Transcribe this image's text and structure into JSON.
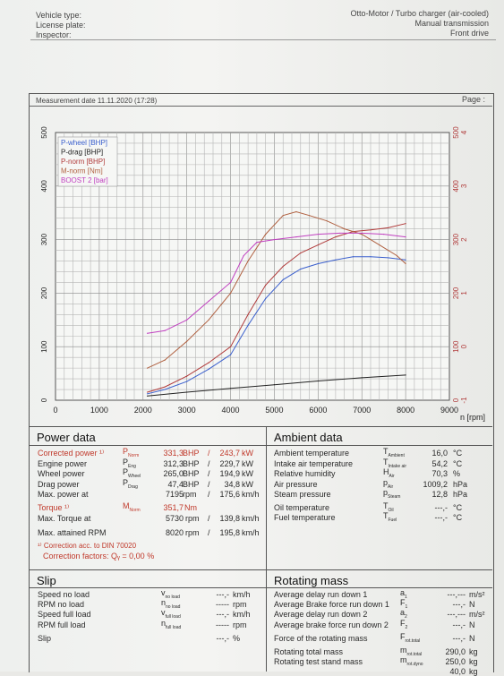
{
  "header": {
    "left": [
      "Vehicle type:",
      "License plate:",
      "Inspector:"
    ],
    "right": [
      "Otto-Motor / Turbo charger (air-cooled)",
      "Manual transmission",
      "Front drive"
    ]
  },
  "measurement_date": "Measurement date  11.11.2020 (17:28)",
  "page_label": "Page :",
  "chart_data": {
    "type": "line",
    "xlabel": "n [rpm]",
    "x_ticks": [
      "0",
      "1000",
      "2000",
      "3000",
      "4000",
      "5000",
      "6000",
      "7000",
      "8000",
      "9000"
    ],
    "y_ticks_left": [
      "0",
      "100",
      "200",
      "300",
      "400",
      "500"
    ],
    "y_ticks_right": [
      "0",
      "100",
      "200",
      "300",
      "400",
      "500"
    ],
    "y_ticks_right2": [
      "-1",
      "0",
      "1",
      "2",
      "3",
      "4"
    ],
    "xlim": [
      0,
      9000
    ],
    "ylim": [
      0,
      500
    ],
    "grid": true,
    "legend_position": "top-left",
    "series": [
      {
        "name": "P-wheel [BHP]",
        "color": "#3a5fcd",
        "x": [
          2100,
          2500,
          3000,
          3500,
          4000,
          4400,
          4800,
          5200,
          5600,
          6000,
          6400,
          6800,
          7200,
          7600,
          8000
        ],
        "y": [
          12,
          20,
          35,
          58,
          85,
          140,
          190,
          225,
          245,
          255,
          262,
          268,
          268,
          266,
          262
        ]
      },
      {
        "name": "P-drag [BHP]",
        "color": "#222222",
        "x": [
          2100,
          3000,
          4000,
          5000,
          6000,
          7000,
          8000
        ],
        "y": [
          8,
          15,
          22,
          29,
          36,
          42,
          47
        ]
      },
      {
        "name": "P-norm [BHP]",
        "color": "#b03a3a",
        "x": [
          2100,
          2500,
          3000,
          3500,
          4000,
          4400,
          4800,
          5200,
          5600,
          6000,
          6400,
          6800,
          7200,
          7600,
          8000
        ],
        "y": [
          15,
          25,
          45,
          70,
          100,
          160,
          215,
          250,
          275,
          290,
          305,
          315,
          318,
          322,
          330
        ]
      },
      {
        "name": "M-norm [Nm]",
        "color": "#b06040",
        "x": [
          2100,
          2500,
          3000,
          3500,
          4000,
          4400,
          4800,
          5200,
          5500,
          5800,
          6200,
          6600,
          7000,
          7400,
          7800,
          8000
        ],
        "y": [
          60,
          75,
          110,
          150,
          200,
          260,
          310,
          345,
          352,
          345,
          335,
          320,
          310,
          290,
          270,
          255
        ]
      },
      {
        "name": "BOOST 2 [bar]",
        "color": "#c040c0",
        "x": [
          2100,
          2500,
          3000,
          3500,
          4000,
          4300,
          4600,
          5000,
          5500,
          6000,
          6500,
          7000,
          7500,
          8000
        ],
        "y": [
          125,
          130,
          150,
          185,
          220,
          270,
          295,
          300,
          305,
          310,
          312,
          312,
          310,
          305
        ]
      }
    ]
  },
  "power_data": {
    "title": "Power data",
    "rows": [
      {
        "label": "Corrected power ¹⁾",
        "sym": "P",
        "sub": "Norm",
        "v1": "331,3",
        "u1": "BHP",
        "v2": "243,7",
        "u2": "kW"
      },
      {
        "label": "Engine power",
        "sym": "P",
        "sub": "Eng",
        "v1": "312,3",
        "u1": "BHP",
        "v2": "229,7",
        "u2": "kW"
      },
      {
        "label": "Wheel power",
        "sym": "P",
        "sub": "Wheel",
        "v1": "265,0",
        "u1": "BHP",
        "v2": "194,9",
        "u2": "kW"
      },
      {
        "label": "Drag power",
        "sym": "P",
        "sub": "Drag",
        "v1": "47,4",
        "u1": "BHP",
        "v2": "34,8",
        "u2": "kW"
      },
      {
        "label": "Max. power at",
        "sym": "",
        "sub": "",
        "v1": "7195",
        "u1": "rpm",
        "v2": "175,6",
        "u2": "km/h"
      }
    ],
    "torque": {
      "label": "Torque ¹⁾",
      "sym": "M",
      "sub": "Norm",
      "v1": "351,7",
      "u1": "Nm"
    },
    "max_torque": {
      "label": "Max. Torque at",
      "v1": "5730",
      "u1": "rpm",
      "v2": "139,8",
      "u2": "km/h"
    },
    "max_rpm": {
      "label": "Max. attained RPM",
      "v1": "8020",
      "u1": "rpm",
      "v2": "195,8",
      "u2": "km/h"
    },
    "note1": "¹⁾ Correction acc. to DIN 70020",
    "note2": "Correction factors: Qᵧ = 0,00 %"
  },
  "ambient_data": {
    "title": "Ambient data",
    "rows": [
      {
        "label": "Ambient temperature",
        "sym": "T",
        "sub": "Ambient",
        "v": "16,0",
        "u": "°C"
      },
      {
        "label": "Intake air temperature",
        "sym": "T",
        "sub": "Intake air",
        "v": "54,2",
        "u": "°C"
      },
      {
        "label": "Relative humidity",
        "sym": "H",
        "sub": "Air",
        "v": "70,3",
        "u": "%"
      },
      {
        "label": "Air pressure",
        "sym": "p",
        "sub": "Air",
        "v": "1009,2",
        "u": "hPa"
      },
      {
        "label": "Steam pressure",
        "sym": "p",
        "sub": "Steam",
        "v": "12,8",
        "u": "hPa"
      },
      {
        "label": "Oil temperature",
        "sym": "T",
        "sub": "Oil",
        "v": "---,-",
        "u": "°C"
      },
      {
        "label": "Fuel temperature",
        "sym": "T",
        "sub": "Fuel",
        "v": "---,-",
        "u": "°C"
      }
    ]
  },
  "slip": {
    "title": "Slip",
    "rows": [
      {
        "label": "Speed no load",
        "sym": "v",
        "sub": "no load",
        "v": "---,-",
        "u": "km/h"
      },
      {
        "label": "RPM no load",
        "sym": "n",
        "sub": "no load",
        "v": "-----",
        "u": "rpm"
      },
      {
        "label": "Speed full load",
        "sym": "v",
        "sub": "full load",
        "v": "---,-",
        "u": "km/h"
      },
      {
        "label": "RPM full load",
        "sym": "n",
        "sub": "full load",
        "v": "-----",
        "u": "rpm"
      },
      {
        "label": "Slip",
        "sym": "",
        "sub": "",
        "v": "---,-",
        "u": "%"
      }
    ]
  },
  "rotating_mass": {
    "title": "Rotating mass",
    "rows": [
      {
        "label": "Average delay run down 1",
        "sym": "a",
        "sub": "1",
        "v": "---,---",
        "u": "m/s²"
      },
      {
        "label": "Average Brake force run down 1",
        "sym": "F",
        "sub": "1",
        "v": "---,-",
        "u": "N"
      },
      {
        "label": "Average delay run down 2",
        "sym": "a",
        "sub": "2",
        "v": "---,---",
        "u": "m/s²"
      },
      {
        "label": "Average brake force run down 2",
        "sym": "F",
        "sub": "2",
        "v": "---,-",
        "u": "N"
      },
      {
        "label": "Force of the rotating mass",
        "sym": "F",
        "sub": "rot.total",
        "v": "---,-",
        "u": "N"
      },
      {
        "label": "Rotating total mass",
        "sym": "m",
        "sub": "rot.total",
        "v": "290,0",
        "u": "kg"
      },
      {
        "label": "Rotating test stand mass",
        "sym": "m",
        "sub": "rot.dyno",
        "v": "250,0",
        "u": "kg"
      },
      {
        "label": "",
        "sym": "",
        "sub": "",
        "v": "40,0",
        "u": "kg"
      }
    ]
  }
}
